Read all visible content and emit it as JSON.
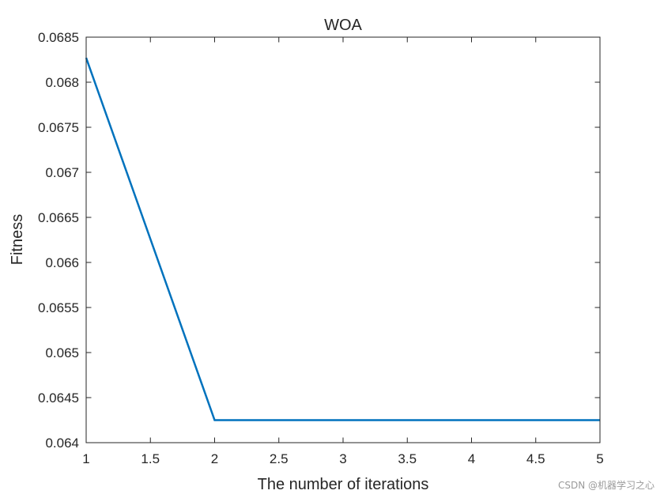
{
  "chart_data": {
    "type": "line",
    "title": "WOA",
    "xlabel": "The number of iterations",
    "ylabel": "Fitness",
    "xlim": [
      1,
      5
    ],
    "ylim": [
      0.064,
      0.0685
    ],
    "xticks": [
      1,
      1.5,
      2,
      2.5,
      3,
      3.5,
      4,
      4.5,
      5
    ],
    "xtick_labels": [
      "1",
      "1.5",
      "2",
      "2.5",
      "3",
      "3.5",
      "4",
      "4.5",
      "5"
    ],
    "yticks": [
      0.064,
      0.0645,
      0.065,
      0.0655,
      0.066,
      0.0665,
      0.067,
      0.0675,
      0.068,
      0.0685
    ],
    "ytick_labels": [
      "0.064",
      "0.0645",
      "0.065",
      "0.0655",
      "0.066",
      "0.0665",
      "0.067",
      "0.0675",
      "0.068",
      "0.0685"
    ],
    "grid": false,
    "series": [
      {
        "x": [
          1,
          2,
          3,
          4,
          5
        ],
        "y": [
          0.06827,
          0.06425,
          0.06425,
          0.06425,
          0.06425
        ],
        "color": "#0072BD"
      }
    ]
  },
  "watermark": "CSDN @机器学习之心"
}
